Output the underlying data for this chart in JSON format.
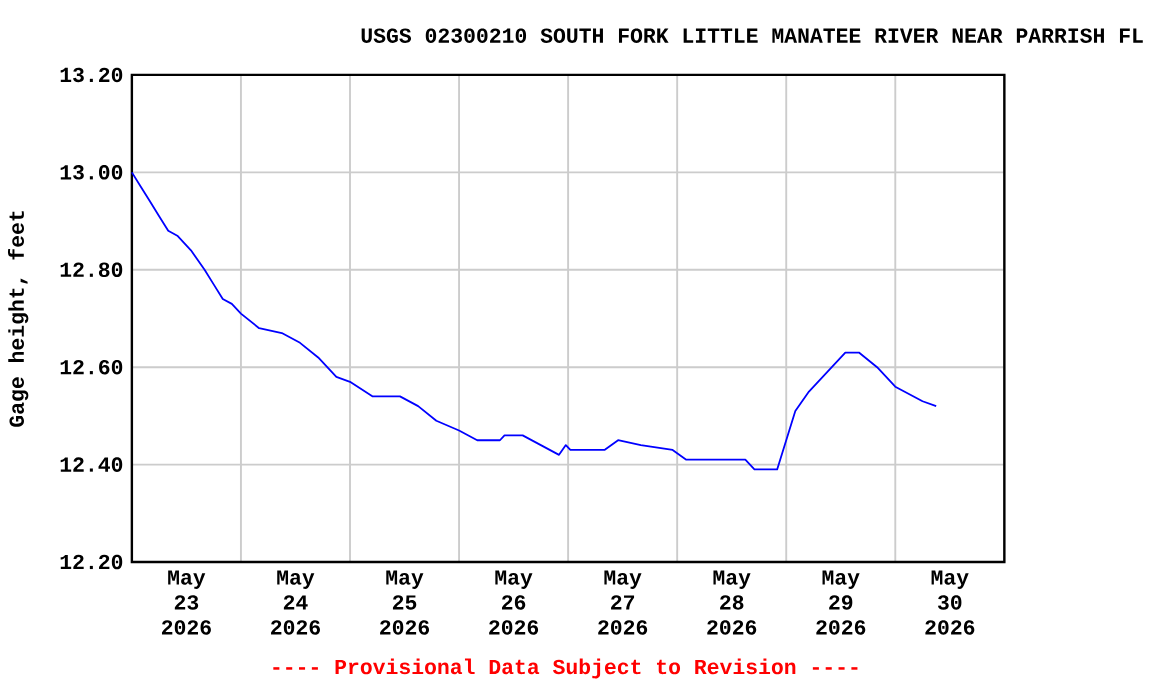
{
  "chart_data": {
    "type": "line",
    "title": "USGS 02300210 SOUTH FORK LITTLE MANATEE RIVER NEAR PARRISH FL",
    "ylabel": "Gage height, feet",
    "annotations": [
      "---- Provisional Data Subject to Revision ----"
    ],
    "x": [
      "2026-05-23T00:00",
      "2026-05-23T02:00",
      "2026-05-23T04:00",
      "2026-05-23T06:00",
      "2026-05-23T08:00",
      "2026-05-23T10:00",
      "2026-05-23T13:00",
      "2026-05-23T16:00",
      "2026-05-23T18:00",
      "2026-05-23T20:00",
      "2026-05-23T22:00",
      "2026-05-24T00:00",
      "2026-05-24T04:00",
      "2026-05-24T09:00",
      "2026-05-24T13:00",
      "2026-05-24T17:00",
      "2026-05-24T21:00",
      "2026-05-25T00:00",
      "2026-05-25T05:00",
      "2026-05-25T11:00",
      "2026-05-25T15:00",
      "2026-05-25T19:00",
      "2026-05-26T00:00",
      "2026-05-26T04:00",
      "2026-05-26T09:00",
      "2026-05-26T10:00",
      "2026-05-26T14:00",
      "2026-05-26T18:00",
      "2026-05-26T22:00",
      "2026-05-26T23:30",
      "2026-05-27T00:30",
      "2026-05-27T08:00",
      "2026-05-27T11:00",
      "2026-05-27T16:00",
      "2026-05-27T23:00",
      "2026-05-28T02:00",
      "2026-05-28T15:00",
      "2026-05-28T17:00",
      "2026-05-28T22:00",
      "2026-05-29T00:00",
      "2026-05-29T02:00",
      "2026-05-29T05:00",
      "2026-05-29T09:00",
      "2026-05-29T13:00",
      "2026-05-29T16:00",
      "2026-05-29T20:00",
      "2026-05-30T00:00",
      "2026-05-30T06:00",
      "2026-05-30T09:00"
    ],
    "series": [
      {
        "color": "#0000ff",
        "values": [
          13.0,
          12.97,
          12.94,
          12.91,
          12.88,
          12.87,
          12.84,
          12.8,
          12.77,
          12.74,
          12.73,
          12.71,
          12.68,
          12.67,
          12.65,
          12.62,
          12.58,
          12.57,
          12.54,
          12.54,
          12.52,
          12.49,
          12.47,
          12.45,
          12.45,
          12.46,
          12.46,
          12.44,
          12.42,
          12.44,
          12.43,
          12.43,
          12.45,
          12.44,
          12.43,
          12.41,
          12.41,
          12.39,
          12.39,
          12.45,
          12.51,
          12.55,
          12.59,
          12.63,
          12.63,
          12.6,
          12.56,
          12.53,
          12.52
        ]
      }
    ],
    "xlim": [
      "2026-05-23T00:00",
      "2026-05-31T00:00"
    ],
    "xticks": [
      {
        "value": "2026-05-23T00:00",
        "label": null
      },
      {
        "value": "2026-05-24T00:00",
        "label": null
      },
      {
        "value": "2026-05-25T00:00",
        "label": null
      },
      {
        "value": "2026-05-26T00:00",
        "label": null
      },
      {
        "value": "2026-05-27T00:00",
        "label": null
      },
      {
        "value": "2026-05-28T00:00",
        "label": null
      },
      {
        "value": "2026-05-29T00:00",
        "label": null
      },
      {
        "value": "2026-05-30T00:00",
        "label": null
      },
      {
        "value": "2026-05-31T00:00",
        "label": null
      },
      {
        "value": "2026-05-23T12:00",
        "label": "May 23 2026"
      },
      {
        "value": "2026-05-24T12:00",
        "label": "May 24 2026"
      },
      {
        "value": "2026-05-25T12:00",
        "label": "May 25 2026"
      },
      {
        "value": "2026-05-26T12:00",
        "label": "May 26 2026"
      },
      {
        "value": "2026-05-27T12:00",
        "label": "May 27 2026"
      },
      {
        "value": "2026-05-28T12:00",
        "label": "May 28 2026"
      },
      {
        "value": "2026-05-29T12:00",
        "label": "May 29 2026"
      },
      {
        "value": "2026-05-30T12:00",
        "label": "May 30 2026"
      }
    ],
    "ylim": [
      12.2,
      13.2
    ],
    "yticks": [
      {
        "value": 12.2,
        "label": "12.20"
      },
      {
        "value": 12.4,
        "label": "12.40"
      },
      {
        "value": 12.6,
        "label": "12.60"
      },
      {
        "value": 12.8,
        "label": "12.80"
      },
      {
        "value": 13.0,
        "label": "13.00"
      },
      {
        "value": 13.2,
        "label": "13.20"
      }
    ],
    "grid": true,
    "line_style": "solid"
  }
}
